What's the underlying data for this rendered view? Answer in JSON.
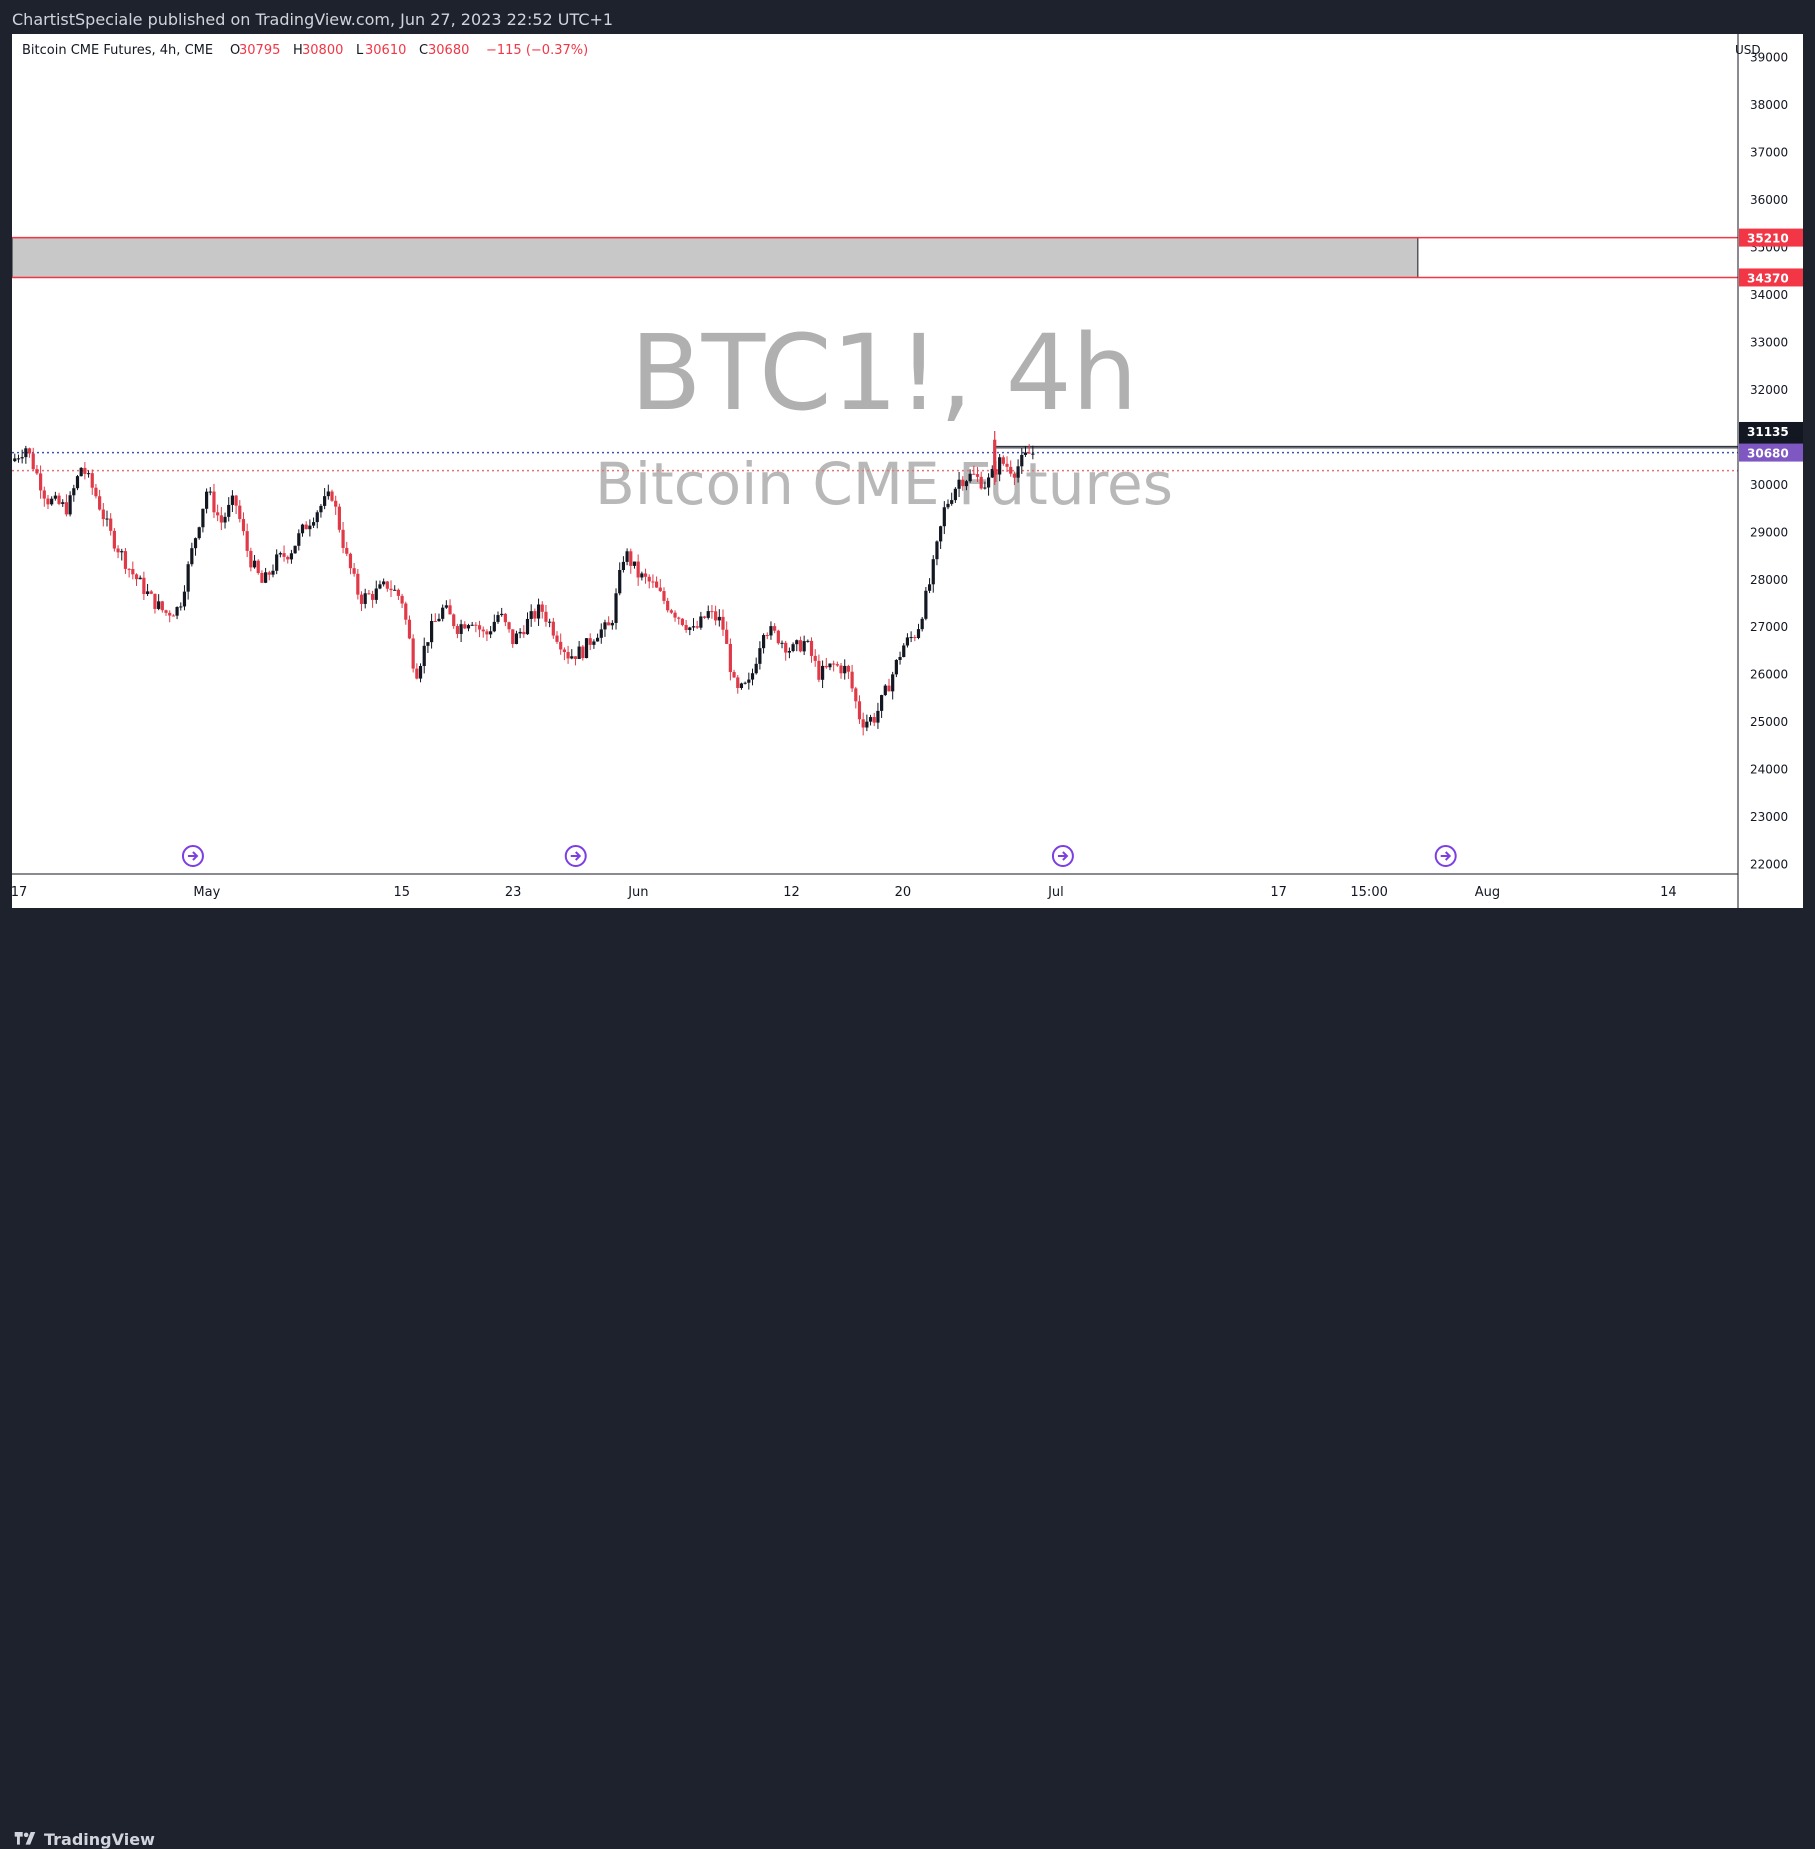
{
  "header": {
    "published": "ChartistSpeciale published on TradingView.com, Jun 27, 2023 22:52 UTC+1"
  },
  "footer": {
    "brand": "TradingView"
  },
  "chart_data": {
    "type": "candlestick",
    "symbol_line": "Bitcoin CME Futures, 4h, CME",
    "ohlc": {
      "O": "30795",
      "H": "30800",
      "L": "30610",
      "C": "30680",
      "change": "−115 (−0.37%)"
    },
    "watermark": {
      "symbol": "BTC1!, 4h",
      "name": "Bitcoin CME Futures"
    },
    "currency": "USD",
    "y_ticks": [
      39000,
      38000,
      37000,
      36000,
      35000,
      34000,
      33000,
      32000,
      31000,
      30000,
      29000,
      28000,
      27000,
      26000,
      25000,
      24000,
      23000,
      22000
    ],
    "ylim": [
      21800,
      39500
    ],
    "x_ticks": [
      {
        "label": "17",
        "x": 0.5
      },
      {
        "label": "May",
        "x": 14
      },
      {
        "label": "15",
        "x": 28
      },
      {
        "label": "23",
        "x": 36
      },
      {
        "label": "Jun",
        "x": 45
      },
      {
        "label": "12",
        "x": 56
      },
      {
        "label": "20",
        "x": 64
      },
      {
        "label": "Jul",
        "x": 75
      },
      {
        "label": "17",
        "x": 91
      },
      {
        "label": "15:00",
        "x": 97.5
      },
      {
        "label": "Aug",
        "x": 106
      },
      {
        "label": "14",
        "x": 119
      }
    ],
    "xlim": [
      0,
      124
    ],
    "price_labels": [
      {
        "value": "35210",
        "price": 35210,
        "bg": "#f23645"
      },
      {
        "value": "34370",
        "price": 34370,
        "bg": "#f23645"
      },
      {
        "value": "31135",
        "price": 31135,
        "bg": "#131722"
      },
      {
        "value": "30810",
        "price": 30810,
        "bg": "#131722"
      },
      {
        "value": "30780",
        "price": 30780,
        "bg": "#131722"
      },
      {
        "value": "30680",
        "price": 30680,
        "bg": "#7e57c2"
      }
    ],
    "zone": {
      "top": 35210,
      "bottom": 34370,
      "x_end": 101
    },
    "levels": [
      {
        "price": 30810,
        "x_start": 70.6
      },
      {
        "price": 30780,
        "x_start": 70.6
      }
    ],
    "dotted_levels": [
      {
        "price": 30680,
        "color": "#3f51b5"
      },
      {
        "price": 30300,
        "color": "#e57373"
      }
    ],
    "event_markers": [
      13,
      40.5,
      75.5,
      103
    ],
    "candle_x_end": 73.5,
    "candle_anchors": [
      [
        0,
        30500
      ],
      [
        1,
        30800
      ],
      [
        2.5,
        29700
      ],
      [
        4,
        29500
      ],
      [
        5,
        30400
      ],
      [
        6,
        29800
      ],
      [
        7,
        29000
      ],
      [
        8.5,
        28200
      ],
      [
        10,
        27600
      ],
      [
        11,
        27300
      ],
      [
        12,
        27400
      ],
      [
        13,
        28700
      ],
      [
        14,
        29900
      ],
      [
        15,
        29200
      ],
      [
        16,
        29700
      ],
      [
        17,
        28500
      ],
      [
        18,
        27900
      ],
      [
        19,
        28400
      ],
      [
        20,
        28600
      ],
      [
        21,
        29100
      ],
      [
        22,
        29500
      ],
      [
        23,
        29800
      ],
      [
        24,
        28500
      ],
      [
        25,
        27600
      ],
      [
        26,
        27700
      ],
      [
        27,
        27900
      ],
      [
        28,
        27600
      ],
      [
        29,
        26000
      ],
      [
        30,
        26900
      ],
      [
        31,
        27400
      ],
      [
        32,
        27000
      ],
      [
        33,
        27200
      ],
      [
        34,
        26800
      ],
      [
        35,
        27300
      ],
      [
        36,
        26700
      ],
      [
        37,
        27100
      ],
      [
        38,
        27400
      ],
      [
        39,
        26900
      ],
      [
        40,
        26400
      ],
      [
        41,
        26500
      ],
      [
        42,
        26900
      ],
      [
        43,
        27000
      ],
      [
        44,
        28600
      ],
      [
        45,
        28100
      ],
      [
        46,
        27900
      ],
      [
        47,
        27500
      ],
      [
        48,
        27200
      ],
      [
        49,
        26900
      ],
      [
        50,
        27300
      ],
      [
        51,
        27100
      ],
      [
        52,
        25600
      ],
      [
        53,
        25800
      ],
      [
        54,
        27000
      ],
      [
        55,
        26800
      ],
      [
        56,
        26500
      ],
      [
        57,
        26700
      ],
      [
        58,
        26000
      ],
      [
        59,
        26200
      ],
      [
        60,
        26100
      ],
      [
        61,
        25000
      ],
      [
        62,
        25100
      ],
      [
        63,
        25800
      ],
      [
        64,
        26600
      ],
      [
        65,
        26900
      ],
      [
        66,
        28000
      ],
      [
        67,
        29500
      ],
      [
        68,
        30100
      ],
      [
        69,
        30200
      ],
      [
        70,
        30000
      ],
      [
        71,
        30500
      ],
      [
        72,
        30300
      ],
      [
        73,
        30650
      ],
      [
        73.5,
        30680
      ]
    ]
  }
}
